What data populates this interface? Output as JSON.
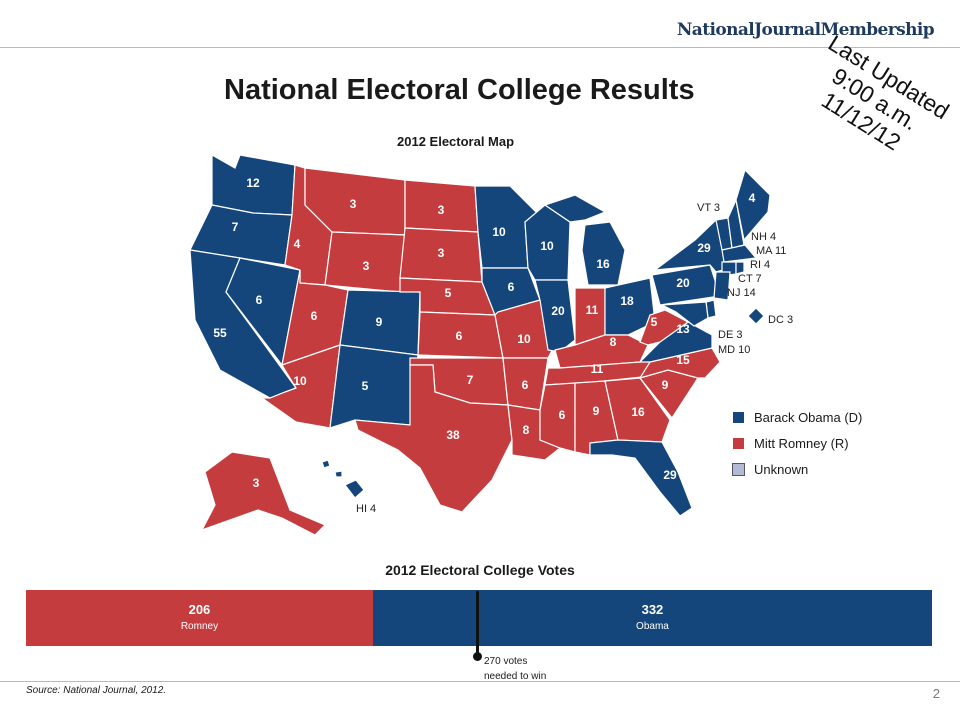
{
  "header": {
    "brand_main": "NationalJournal",
    "brand_sub": "Membership",
    "title": "National Electoral College Results",
    "updated_line1": "Last Updated",
    "updated_line2": "9:00 a.m. 11/12/12",
    "map_label": "2012 Electoral Map"
  },
  "colors": {
    "dem": "#15467b",
    "rep": "#c43c3e",
    "unknown": "#b3bbd2"
  },
  "states": {
    "WA": "12",
    "OR": "7",
    "CA": "55",
    "NV": "6",
    "ID": "4",
    "MT": "3",
    "WY": "3",
    "UT": "6",
    "CO": "9",
    "AZ": "10",
    "NM": "5",
    "ND": "3",
    "SD": "3",
    "NE": "5",
    "KS": "6",
    "OK": "7",
    "TX": "38",
    "MN": "10",
    "IA": "6",
    "MO": "10",
    "AR": "6",
    "LA": "8",
    "WI": "10",
    "IL": "20",
    "MI": "16",
    "IN": "11",
    "OH": "18",
    "KY": "8",
    "TN": "11",
    "MS": "6",
    "AL": "9",
    "GA": "16",
    "FL": "29",
    "SC": "9",
    "NC": "15",
    "VA": "13",
    "WV": "5",
    "PA": "20",
    "NY": "29",
    "ME": "4",
    "AK": "3"
  },
  "callouts": {
    "VT": "VT 3",
    "NH": "NH 4",
    "MA": "MA 11",
    "RI": "RI 4",
    "CT": "CT 7",
    "NJ": "NJ 14",
    "DC": "DC 3",
    "DE": "DE 3",
    "MD": "MD 10",
    "HI": "HI 4"
  },
  "legend": [
    {
      "label": "Barack Obama (D)",
      "color": "#15467b"
    },
    {
      "label": "Mitt Romney (R)",
      "color": "#c43c3e"
    },
    {
      "label": "Unknown",
      "color": "#b3bbd2"
    }
  ],
  "votes": {
    "title": "2012 Electoral College Votes",
    "romney": {
      "value": 206,
      "label": "206",
      "name": "Romney"
    },
    "obama": {
      "value": 332,
      "label": "332",
      "name": "Obama"
    },
    "threshold": {
      "value": 270,
      "label_line1": "270 votes",
      "label_line2": "needed to win"
    }
  },
  "footer": {
    "source": "Source: National Journal, 2012.",
    "page": "2"
  }
}
